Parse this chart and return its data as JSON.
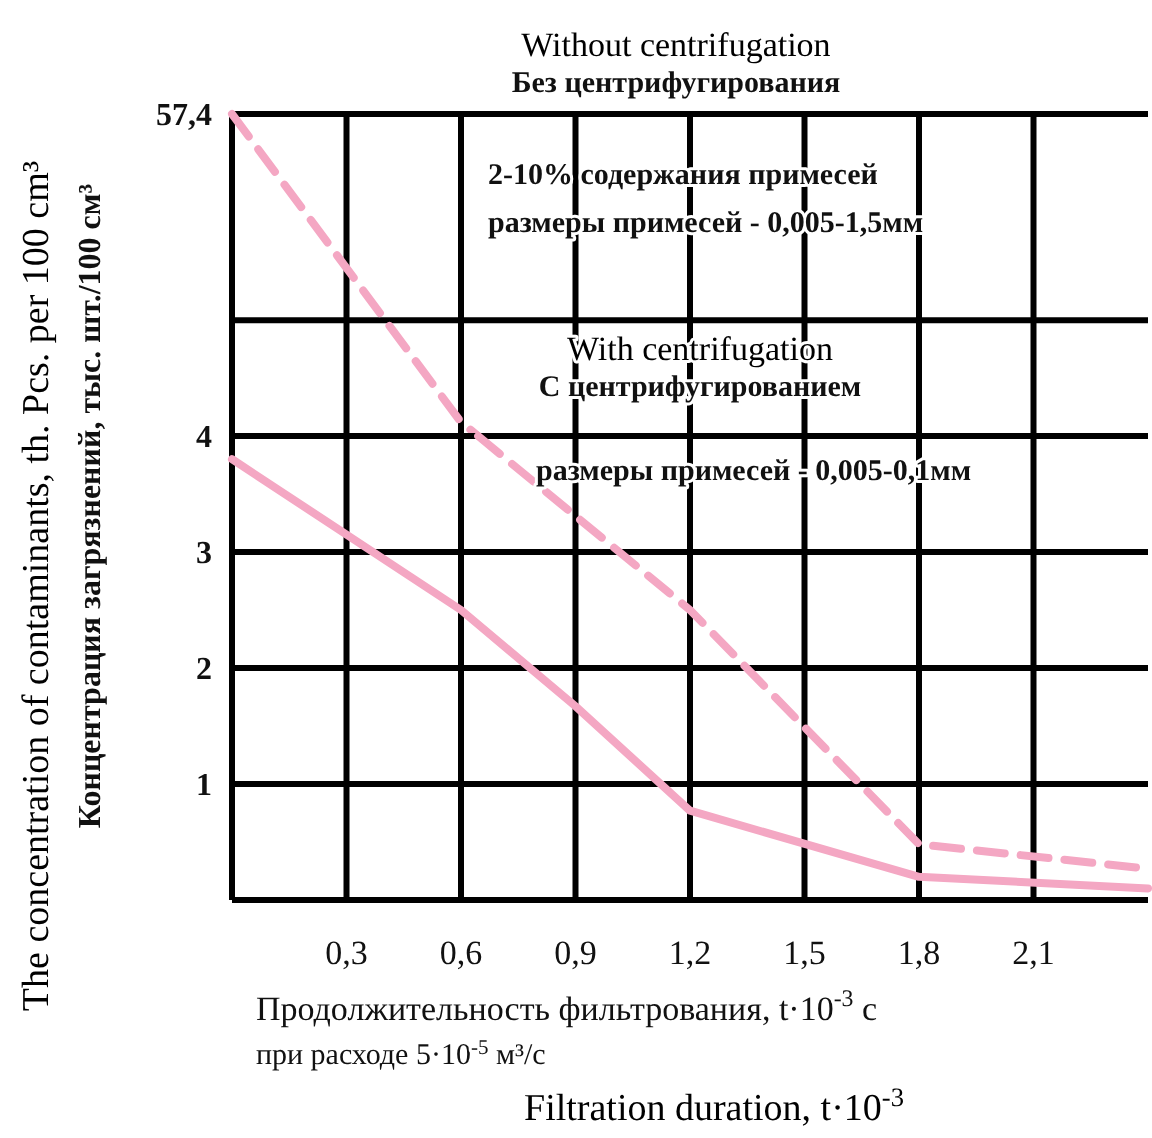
{
  "chart_data": [
    {
      "type": "line",
      "ylabel": "Концентрация загрязнений, тыс. шт./100 см³",
      "annotations": [
        "Without centrifugation",
        "Без центрифугирования",
        "2-10% содержания примесей",
        "размеры примесей - 0,005-1,5мм",
        "With centrifugation",
        "С центрифугированием",
        "The concentration of contaminants, th. Pcs. per 100 cm³"
      ],
      "series": [
        {
          "color": "#f4a7c3",
          "line_style": "dashed",
          "x": [
            0,
            0.6,
            0.645
          ],
          "values": [
            57.4,
            6.3,
            4
          ]
        }
      ],
      "xlim": [
        0,
        2.4
      ],
      "xticks": [
        0.3,
        0.6,
        0.9,
        1.2,
        1.5,
        1.8,
        2.1
      ],
      "ylim": [
        4,
        57.4
      ],
      "yticks": [
        4,
        {
          "value": 23.2,
          "label": null
        },
        {
          "value": 57.4,
          "label": "57,4"
        }
      ],
      "tick_labels": "y",
      "grid": true
    },
    {
      "type": "line",
      "xlabel": "Продолжительность фильтрования, t·10$^{-3}$ с\nпри расходе 5·10$^{-5}$ м³/с",
      "annotations": [
        "размеры примесей - 0,005-0,1мм",
        "Filtration duration, t·10$^{-3}$"
      ],
      "series": [
        {
          "color": "#f4a7c3",
          "line_style": "dashed",
          "x": [
            0.645,
            0.7,
            1.2,
            1.8,
            2.4
          ],
          "values": [
            4,
            3.85,
            2.5,
            0.48,
            0.27
          ]
        },
        {
          "color": "#f4a7c3",
          "line_style": "solid",
          "x": [
            0,
            0.6,
            0.9,
            1.2,
            1.8,
            2.4
          ],
          "values": [
            3.8,
            2.5,
            1.67,
            0.77,
            0.2,
            0.1
          ]
        }
      ],
      "xlim": [
        0,
        2.4
      ],
      "xticks": [
        {
          "value": 0.3,
          "label": "0,3"
        },
        {
          "value": 0.6,
          "label": "0,6"
        },
        {
          "value": 0.9,
          "label": "0,9"
        },
        {
          "value": 1.2,
          "label": "1,2"
        },
        {
          "value": 1.5,
          "label": "1,5"
        },
        {
          "value": 1.8,
          "label": "1,8"
        },
        {
          "value": 2.1,
          "label": "2,1"
        }
      ],
      "ylim": [
        0,
        4
      ],
      "yticks": [
        1,
        2,
        3,
        {
          "value": 4,
          "label": null
        }
      ],
      "grid": true
    }
  ]
}
